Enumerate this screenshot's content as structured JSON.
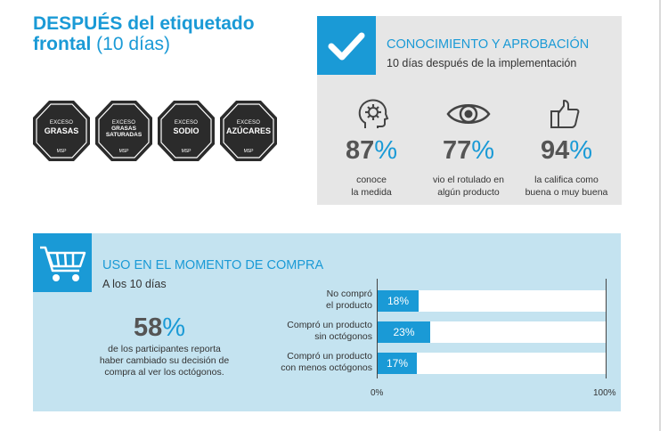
{
  "title": {
    "bold": "DESPUÉS del etiquetado",
    "line2_bold": "frontal",
    "line2_light": " (10 días)"
  },
  "seals": [
    {
      "top": "EXCESO",
      "main": "GRASAS",
      "small": false,
      "mark": "MSP"
    },
    {
      "top": "EXCESO",
      "main": "GRASAS SATURADAS",
      "small": true,
      "mark": "MSP"
    },
    {
      "top": "EXCESO",
      "main": "SODIO",
      "small": false,
      "mark": "MSP"
    },
    {
      "top": "EXCESO",
      "main": "AZÚCARES",
      "small": false,
      "mark": "MSP"
    }
  ],
  "knowledge": {
    "heading": "CONOCIMIENTO Y APROBACIÓN",
    "subheading": "10 días después de la implementación",
    "stats": [
      {
        "icon": "head-gear-icon",
        "value": "87",
        "unit": "%",
        "line1": "conoce",
        "line2": "la medida"
      },
      {
        "icon": "eye-icon",
        "value": "77",
        "unit": "%",
        "line1": "vio el rotulado en",
        "line2": "algún producto"
      },
      {
        "icon": "thumbs-up-icon",
        "value": "94",
        "unit": "%",
        "line1": "la califica como",
        "line2": "buena o muy buena"
      }
    ]
  },
  "purchase": {
    "heading": "USO EN EL MOMENTO DE COMPRA",
    "subheading": "A los 10 días",
    "big_value": "58",
    "big_unit": "%",
    "big_desc": [
      "de los participantes reporta",
      "haber cambiado su decisión de",
      "compra al ver los octógonos."
    ]
  },
  "chart_data": {
    "type": "bar",
    "orientation": "horizontal",
    "categories": [
      "No compró el producto",
      "Compró un producto sin octógonos",
      "Compró un producto con menos octógonos"
    ],
    "category_lines": [
      [
        "No compró",
        "el producto"
      ],
      [
        "Compró un producto",
        "sin octógonos"
      ],
      [
        "Compró un producto",
        "con menos octógonos"
      ]
    ],
    "values": [
      18,
      23,
      17
    ],
    "value_labels": [
      "18%",
      "23%",
      "17%"
    ],
    "xlim": [
      0,
      100
    ],
    "ticks": [
      "0%",
      "100%"
    ],
    "bar_color": "#1a9ad6"
  },
  "colors": {
    "accent": "#1a9ad6",
    "panel_gray": "#e6e6e6",
    "panel_blue": "#c4e3f0",
    "seal": "#2b2b2b"
  }
}
